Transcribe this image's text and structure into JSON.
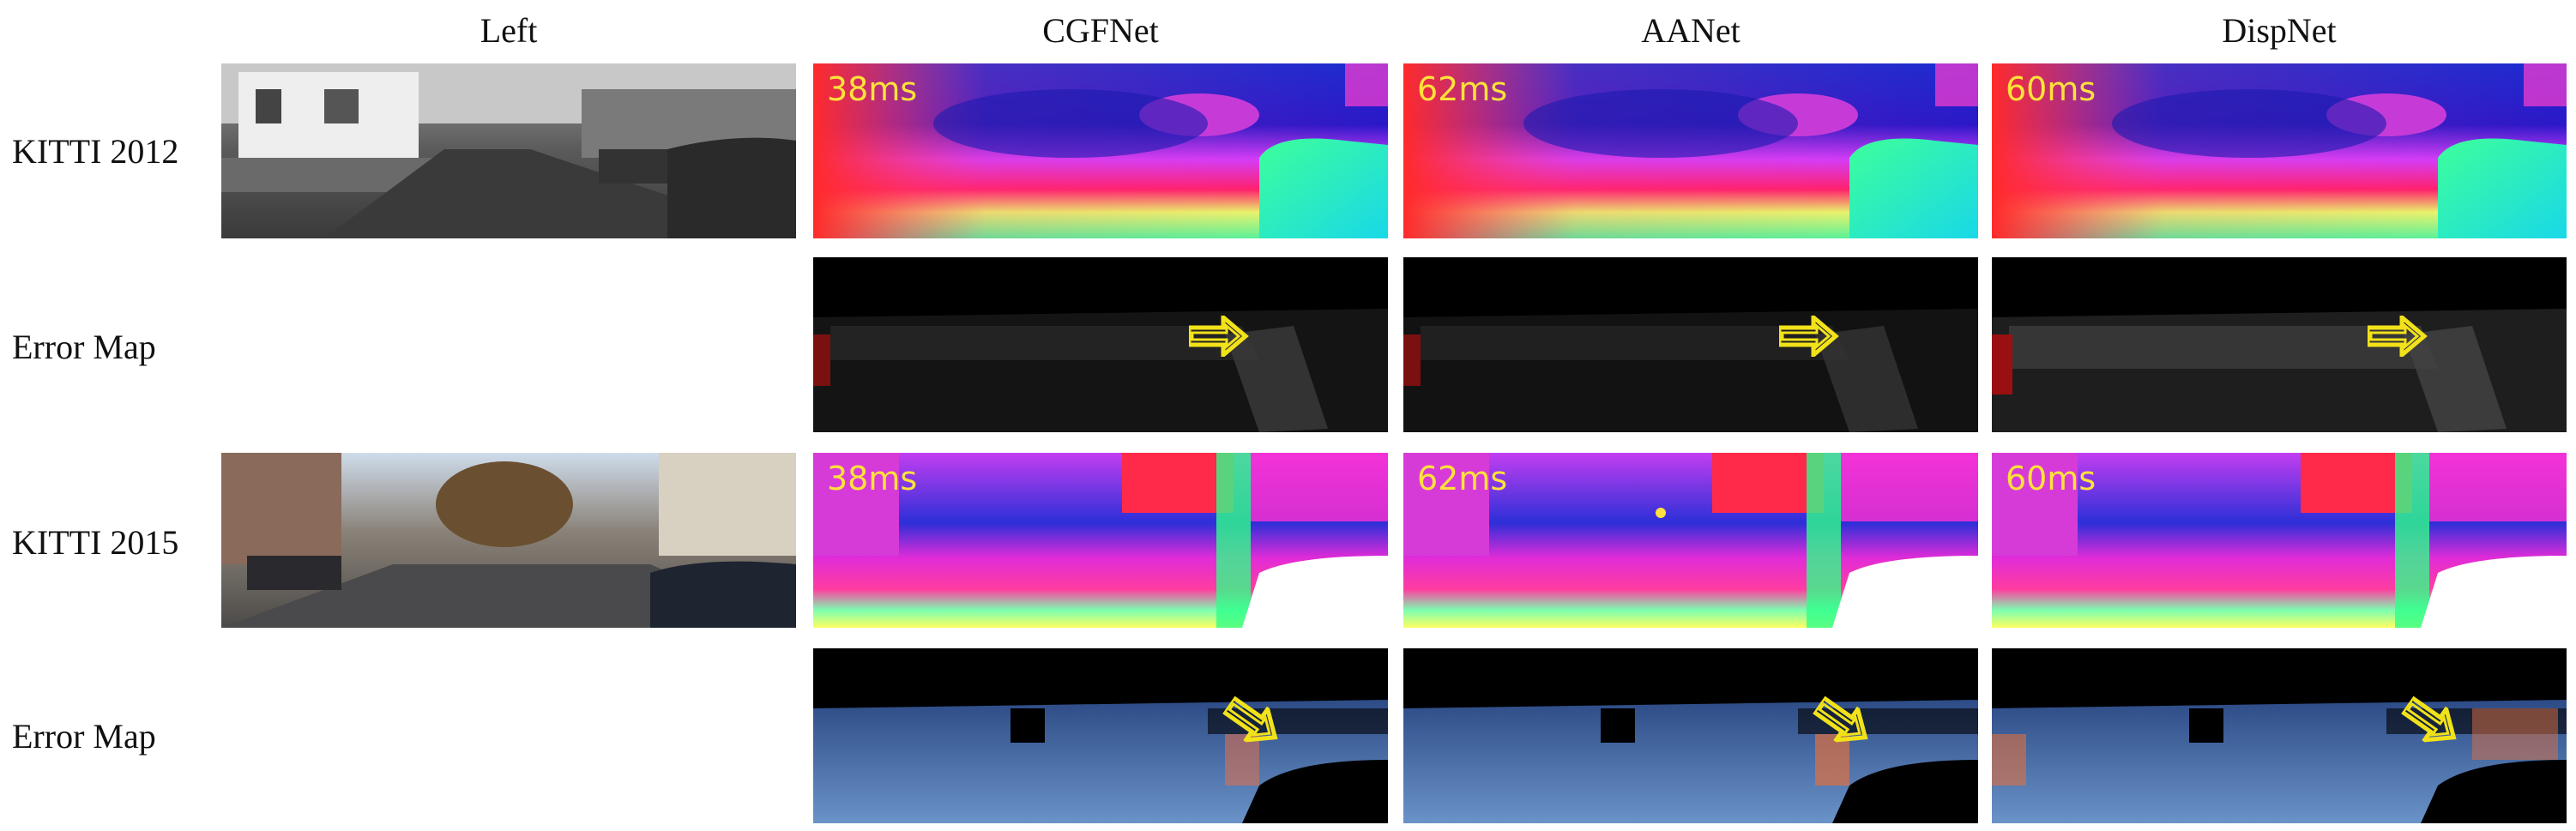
{
  "columns": {
    "left": "Left",
    "cgfnet": "CGFNet",
    "aanet": "AANet",
    "dispnet": "DispNet"
  },
  "rows": {
    "kitti2012": "KITTI 2012",
    "error1": "Error Map",
    "kitti2015": "KITTI 2015",
    "error2": "Error Map"
  },
  "timings": {
    "kitti2012": {
      "cgfnet": "38ms",
      "aanet": "62ms",
      "dispnet": "60ms"
    },
    "kitti2015": {
      "cgfnet": "38ms",
      "aanet": "62ms",
      "dispnet": "60ms"
    }
  },
  "colors": {
    "annotation": "#ffe23a",
    "arrow": "#f2e21a"
  }
}
